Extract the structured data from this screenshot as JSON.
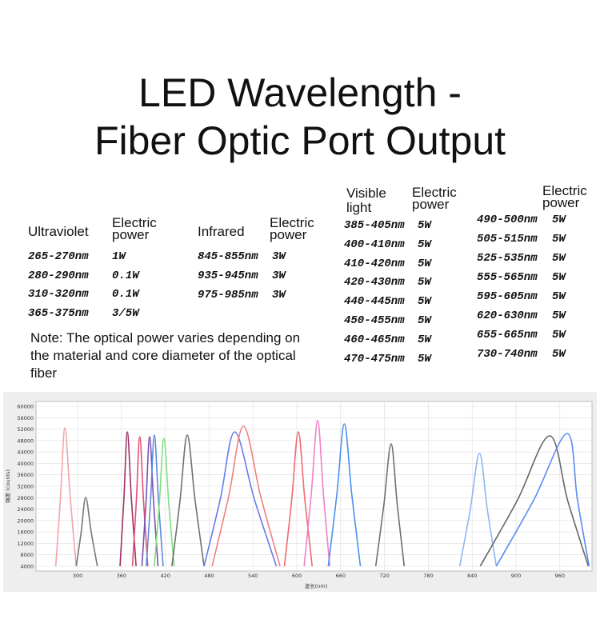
{
  "header": {
    "title_lines": [
      "LED Wavelength -",
      "Fiber Optic Port Output"
    ]
  },
  "tables": [
    {
      "label": "Ultraviolet",
      "power_header": "Electric power",
      "rows": [
        [
          "265-270nm",
          "1W"
        ],
        [
          "280-290nm",
          "0.1W"
        ],
        [
          "310-320nm",
          "0.1W"
        ],
        [
          "365-375nm",
          "3/5W"
        ]
      ]
    },
    {
      "label": "Infrared",
      "power_header": "Electric power",
      "rows": [
        [
          "845-855nm",
          "3W"
        ],
        [
          "935-945nm",
          "3W"
        ],
        [
          "975-985nm",
          "3W"
        ]
      ]
    },
    {
      "label": "Visible light",
      "power_header": "Electric power",
      "rows": [
        [
          "385-405nm",
          "5W"
        ],
        [
          "400-410nm",
          "5W"
        ],
        [
          "410-420nm",
          "5W"
        ],
        [
          "420-430nm",
          "5W"
        ],
        [
          "440-445nm",
          "5W"
        ],
        [
          "450-455nm",
          "5W"
        ],
        [
          "460-465nm",
          "5W"
        ],
        [
          "470-475nm",
          "5W"
        ]
      ]
    },
    {
      "power_header": "Electric power",
      "rows": [
        [
          "490-500nm",
          "5W"
        ],
        [
          "505-515nm",
          "5W"
        ],
        [
          "525-535nm",
          "5W"
        ],
        [
          "555-565nm",
          "5W"
        ],
        [
          "595-605nm",
          "5W"
        ],
        [
          "620-630nm",
          "5W"
        ],
        [
          "655-665nm",
          "5W"
        ],
        [
          "730-740nm",
          "5W"
        ]
      ]
    }
  ],
  "note": "Note: The optical power varies depending on the material and core diameter of the optical fiber",
  "chart_data": {
    "type": "line",
    "y_label": "强度 (counts)",
    "x_label": "波长(nm)",
    "xlim": [
      243,
      1004
    ],
    "ylim": [
      4000,
      60000
    ],
    "xticks": [
      300,
      360,
      420,
      480,
      540,
      600,
      660,
      720,
      780,
      840,
      900,
      960
    ],
    "yticks": [
      4000,
      8000,
      12000,
      16000,
      20000,
      24000,
      28000,
      32000,
      36000,
      40000,
      44000,
      48000,
      52000,
      56000,
      60000
    ],
    "grid": true,
    "series": [
      {
        "color": "#f5a3a8",
        "x": [
          270,
          276.6,
          282.5,
          289.8,
          298
        ],
        "values": [
          4000,
          28220,
          52440,
          28220,
          4000
        ]
      },
      {
        "color": "#777777",
        "x": [
          298,
          304.9,
          311,
          318.5,
          327
        ],
        "values": [
          4000,
          16040,
          28080,
          16040,
          4000
        ]
      },
      {
        "color": "#a0306a",
        "x": [
          358,
          363.3,
          368,
          373.6,
          380
        ],
        "values": [
          4000,
          27520,
          51040,
          27520,
          4000
        ]
      },
      {
        "color": "#e05070",
        "x": [
          375,
          380.3,
          385,
          390.2,
          396
        ],
        "values": [
          4000,
          26680,
          49360,
          26680,
          4000
        ]
      },
      {
        "color": "#7a50b0",
        "x": [
          388,
          393.6,
          398.5,
          403.9,
          410
        ],
        "values": [
          4000,
          26680,
          49360,
          26680,
          4000
        ]
      },
      {
        "color": "#5a8ae0",
        "x": [
          394,
          399.8,
          405,
          410.6,
          417
        ],
        "values": [
          4000,
          26960,
          49920,
          26960,
          4000
        ]
      },
      {
        "color": "#7ee07e",
        "x": [
          405,
          411.9,
          418,
          424.6,
          432
        ],
        "values": [
          4000,
          26400,
          48800,
          26400,
          4000
        ]
      },
      {
        "color": "#707070",
        "x": [
          429,
          440.1,
          450,
          460.8,
          473
        ],
        "values": [
          4000,
          26960,
          49920,
          26960,
          4000
        ]
      },
      {
        "color": "#6a7ae8",
        "x": [
          473,
          495.3,
          515,
          541.8,
          572
        ],
        "values": [
          4000,
          27520,
          51040,
          27520,
          4000
        ]
      },
      {
        "color": "#f08080",
        "x": [
          484,
          506.8,
          527,
          550.5,
          577
        ],
        "values": [
          4000,
          28500,
          53000,
          28500,
          4000
        ]
      },
      {
        "color": "#f06870",
        "x": [
          583,
          593.1,
          602,
          610.9,
          621
        ],
        "values": [
          4000,
          27520,
          51040,
          27520,
          4000
        ]
      },
      {
        "color": "#f080c8",
        "x": [
          610,
          619.8,
          628.5,
          636.3,
          645
        ],
        "values": [
          4000,
          29500,
          55000,
          29500,
          4000
        ]
      },
      {
        "color": "#4a90f0",
        "x": [
          643,
          654.7,
          665,
          675.3,
          687
        ],
        "values": [
          4000,
          28920,
          53840,
          28920,
          4000
        ]
      },
      {
        "color": "#707070",
        "x": [
          708,
          719.1,
          729,
          737.5,
          747
        ],
        "values": [
          4000,
          25420,
          46840,
          25420,
          4000
        ]
      },
      {
        "color": "#8ab8f0",
        "x": [
          823,
          837.3,
          850,
          860.8,
          873
        ],
        "values": [
          4000,
          23750,
          43500,
          23750,
          4000
        ]
      },
      {
        "color": "#666666",
        "x": [
          851,
          901.3,
          946,
          970.9,
          999
        ],
        "values": [
          4000,
          26820,
          49640,
          26820,
          4000
        ]
      },
      {
        "color": "#5a8af0",
        "x": [
          873,
          924.4,
          970,
          984.1,
          1000
        ],
        "values": [
          4000,
          27240,
          50480,
          27240,
          4000
        ]
      }
    ]
  }
}
